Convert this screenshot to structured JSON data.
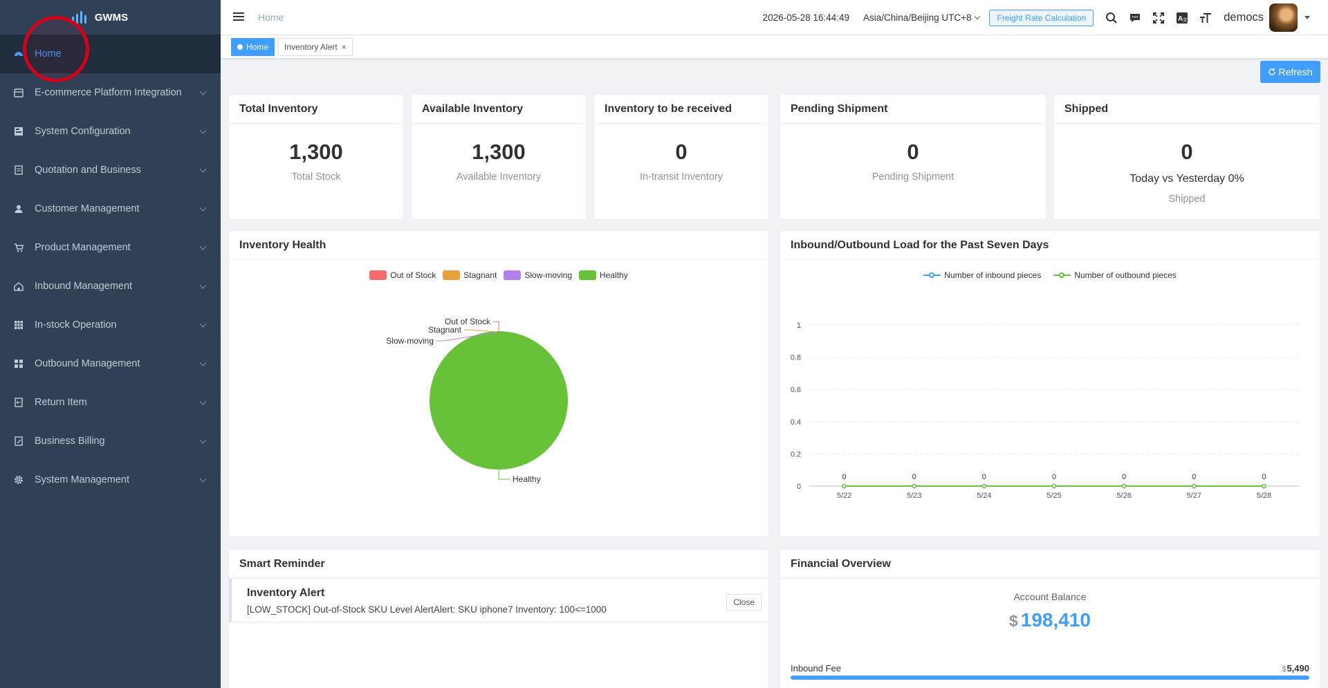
{
  "app": {
    "name": "GWMS"
  },
  "sidebar": {
    "items": [
      {
        "label": "Home",
        "icon": "dashboard-icon",
        "active": true
      },
      {
        "label": "E-commerce Platform Integration",
        "icon": "store-icon"
      },
      {
        "label": "System Configuration",
        "icon": "config-icon"
      },
      {
        "label": "Quotation and Business",
        "icon": "document-icon"
      },
      {
        "label": "Customer Management",
        "icon": "user-icon"
      },
      {
        "label": "Product Management",
        "icon": "cart-icon"
      },
      {
        "label": "Inbound Management",
        "icon": "home-icon"
      },
      {
        "label": "In-stock Operation",
        "icon": "table-icon"
      },
      {
        "label": "Outbound Management",
        "icon": "grid-icon"
      },
      {
        "label": "Return Item",
        "icon": "return-icon"
      },
      {
        "label": "Business Billing",
        "icon": "billing-icon"
      },
      {
        "label": "System Management",
        "icon": "gear-icon"
      }
    ]
  },
  "header": {
    "breadcrumb": "Home",
    "datetime": "2026-05-28 16:44:49",
    "timezone": "Asia/China/Beijing UTC+8",
    "freight_button": "Freight Rate Calculation",
    "username": "democs",
    "icons": [
      "search-icon",
      "message-icon",
      "fullscreen-icon",
      "translate-icon",
      "font-size-icon"
    ]
  },
  "tags": [
    {
      "label": "Home",
      "active": true
    },
    {
      "label": "Inventory Alert",
      "active": false
    }
  ],
  "refresh_label": "Refresh",
  "stats": {
    "total": {
      "title": "Total Inventory",
      "value": "1,300",
      "sub": "Total Stock"
    },
    "available": {
      "title": "Available Inventory",
      "value": "1,300",
      "sub": "Available Inventory"
    },
    "to_receive": {
      "title": "Inventory to be received",
      "value": "0",
      "sub": "In-transit Inventory"
    },
    "pending": {
      "title": "Pending Shipment",
      "value": "0",
      "sub": "Pending Shipment"
    },
    "shipped": {
      "title": "Shipped",
      "value": "0",
      "compare": "Today vs Yesterday 0%",
      "sub": "Shipped"
    }
  },
  "health": {
    "title": "Inventory Health"
  },
  "load": {
    "title": "Inbound/Outbound Load for the Past Seven Days"
  },
  "chart_data": [
    {
      "type": "pie",
      "title": "Inventory Health",
      "categories": [
        "Out of Stock",
        "Stagnant",
        "Slow-moving",
        "Healthy"
      ],
      "values": [
        0,
        0,
        0,
        1300
      ],
      "colors": [
        "#f56c6c",
        "#e6a23c",
        "#b37feb",
        "#67c23a"
      ],
      "legend": "top"
    },
    {
      "type": "line",
      "title": "Inbound/Outbound Load for the Past Seven Days",
      "categories": [
        "5/22",
        "5/23",
        "5/24",
        "5/25",
        "5/26",
        "5/27",
        "5/28"
      ],
      "series": [
        {
          "name": "Number of inbound pieces",
          "values": [
            0,
            0,
            0,
            0,
            0,
            0,
            0
          ],
          "color": "#409eff"
        },
        {
          "name": "Number of outbound pieces",
          "values": [
            0,
            0,
            0,
            0,
            0,
            0,
            0
          ],
          "color": "#67c23a"
        }
      ],
      "ylim": [
        0,
        1
      ],
      "yticks": [
        "0",
        "0.2",
        "0.4",
        "0.6",
        "0.8",
        "1"
      ],
      "grid": true,
      "legend": "top"
    }
  ],
  "reminder": {
    "title": "Smart Reminder",
    "item_title": "Inventory Alert",
    "item_text": "[LOW_STOCK] Out-of-Stock SKU Level AlertAlert: SKU iphone7 Inventory: 100<=1000",
    "close_label": "Close"
  },
  "finance": {
    "title": "Financial Overview",
    "balance_label": "Account Balance",
    "currency": "$",
    "balance": "198,410",
    "fee_label": "Inbound Fee",
    "fee_currency": "$",
    "fee_value": "5,490",
    "fee_fraction": 1.0
  }
}
